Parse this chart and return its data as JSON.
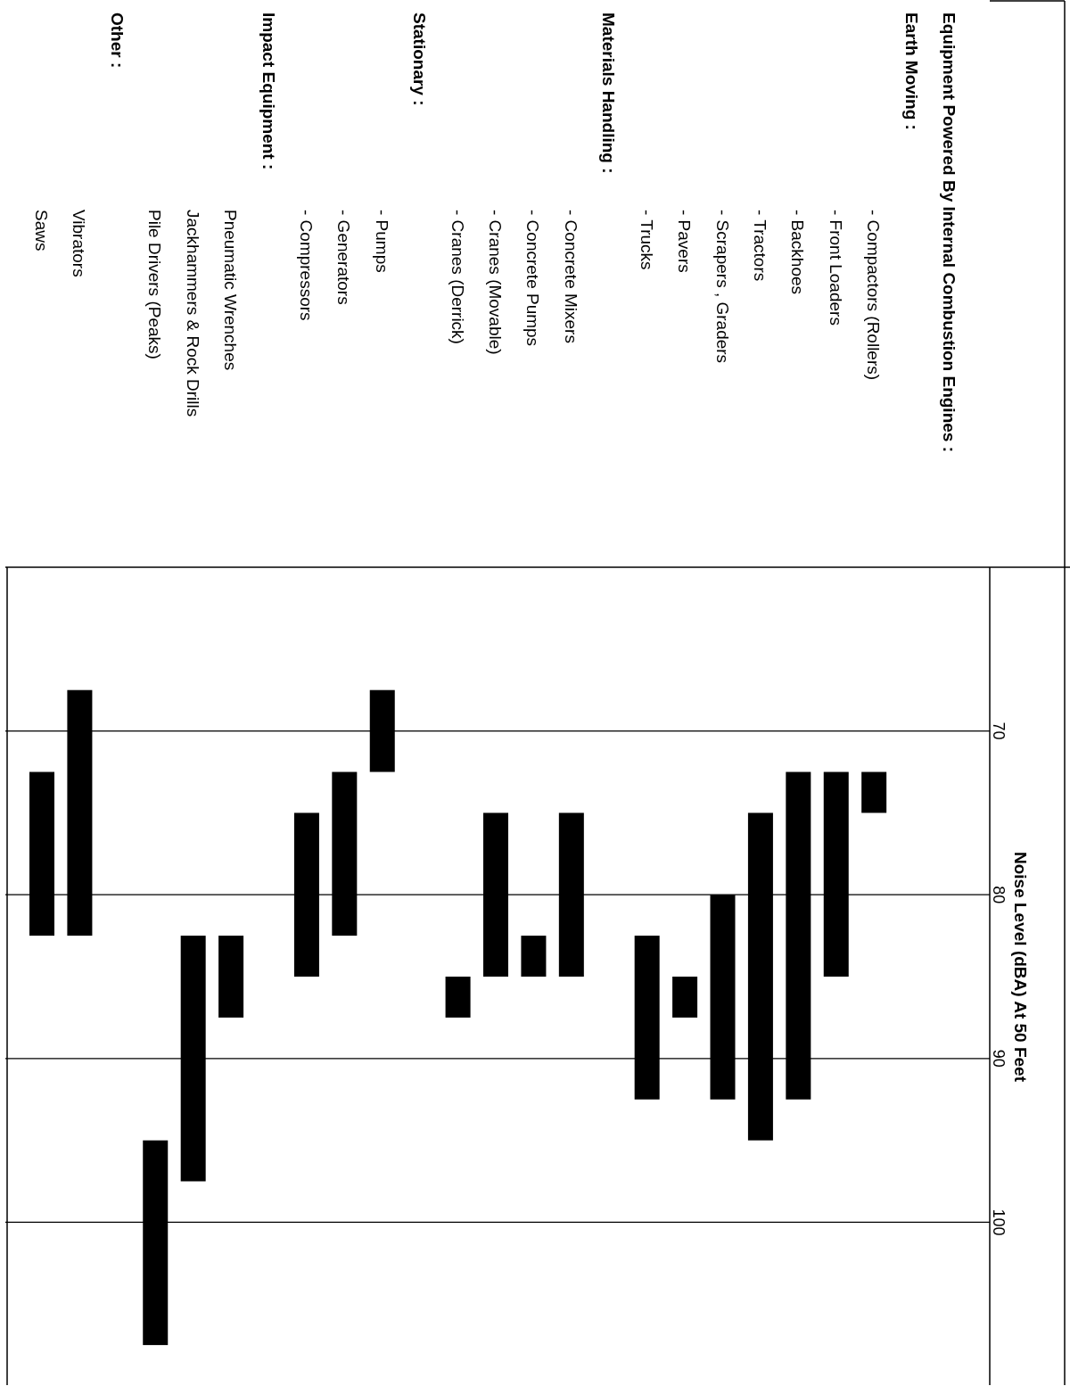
{
  "chart_data": {
    "type": "bar",
    "ylabel": "Noise Level (dBA) At 50 Feet",
    "categories": [
      "Saws",
      "Vibrators",
      null,
      "Pile Drivers (Peaks)",
      "Jackhammers & Rock Drills",
      "Pneumatic Wrenches",
      null,
      "- Compressors",
      "- Generators",
      "- Pumps",
      null,
      "- Cranes (Derrick)",
      "- Cranes (Movable)",
      "- Concrete Pumps",
      "- Concrete Mixers",
      null,
      "- Trucks",
      "- Pavers",
      "- Scrapers , Graders",
      "- Tractors",
      "- Backhoes",
      "- Front Loaders",
      "- Compactors (Rollers)",
      null,
      null
    ],
    "annotations": [
      "Other :",
      "Impact Equipment :",
      "Stationary :",
      "Materials Handling :",
      "Earth Moving :",
      "Equipment Powered By Internal Combustion Engines :"
    ],
    "base": [
      72.5,
      67.5,
      null,
      95,
      82.5,
      82.5,
      null,
      75,
      72.5,
      67.5,
      null,
      85,
      75,
      82.5,
      75,
      null,
      82.5,
      85,
      80,
      75,
      72.5,
      72.5,
      72.5,
      null,
      null
    ],
    "values": [
      10,
      15,
      null,
      12.5,
      15,
      5,
      null,
      10,
      10,
      5,
      null,
      2.5,
      10,
      2.5,
      10,
      null,
      10,
      2.5,
      12.5,
      20,
      20,
      12.5,
      2.5,
      null,
      null
    ],
    "color": "#000000",
    "ylim": [
      110,
      60
    ],
    "yticks": [
      70,
      80,
      90,
      100
    ],
    "grid": "y"
  }
}
